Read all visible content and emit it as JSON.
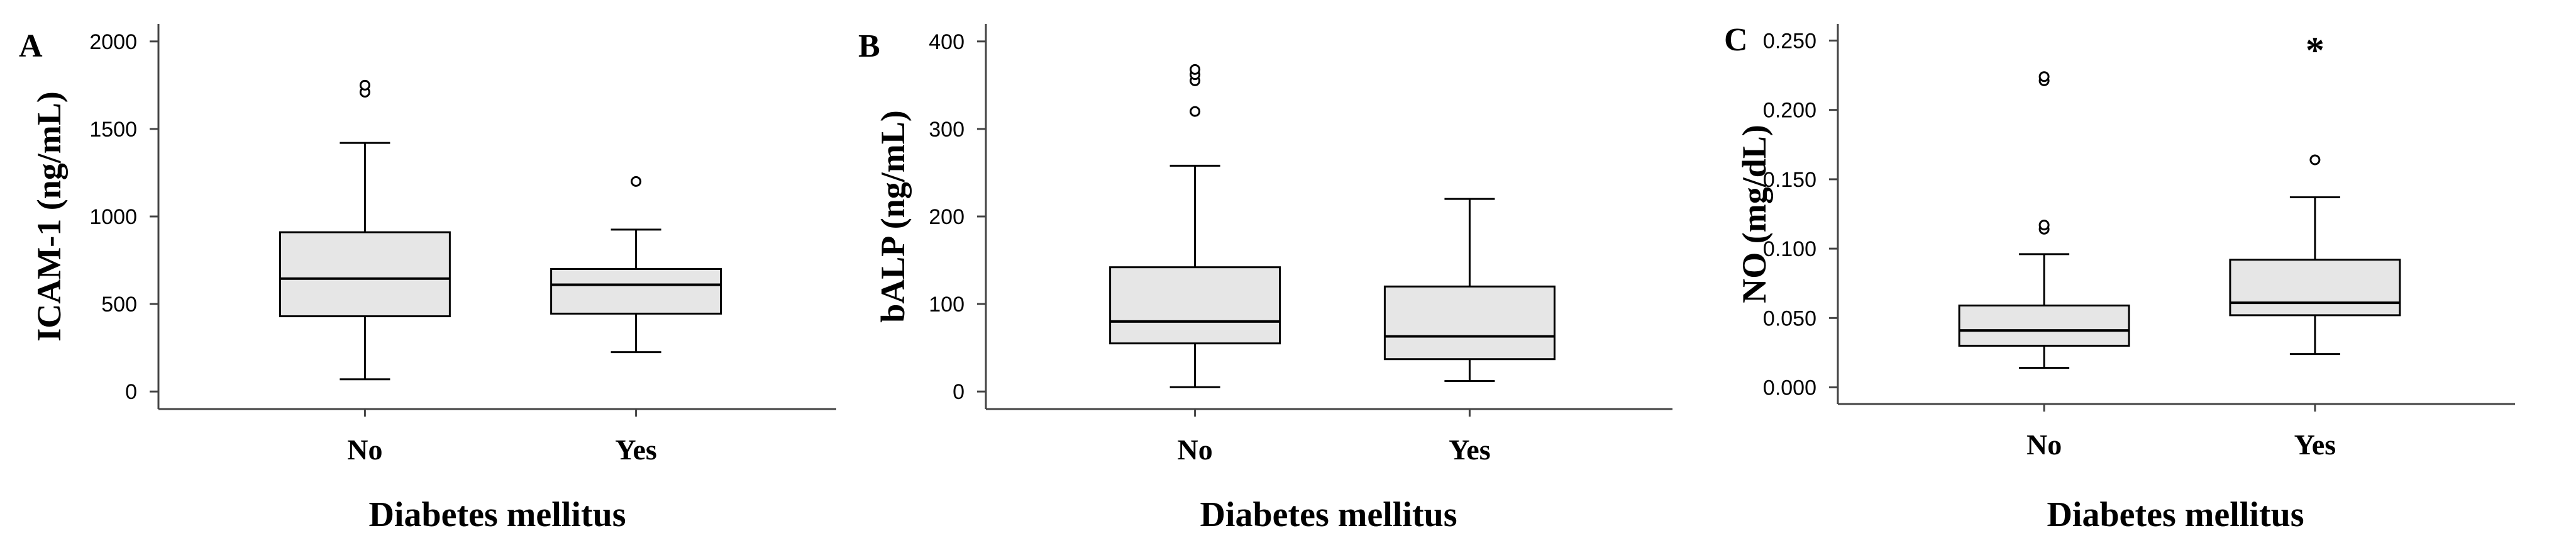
{
  "figure": {
    "description": "Three box plots comparing groups by diabetes mellitus status",
    "colors": {
      "box_fill": "#e6e6e6",
      "stroke": "#000000"
    }
  },
  "chart_data": [
    {
      "type": "box",
      "panel": "A",
      "title": "",
      "xlabel": "Diabetes mellitus",
      "ylabel": "ICAM-1 (ng/mL)",
      "ylim": [
        -100,
        2100
      ],
      "yticks": [
        0,
        500,
        1000,
        1500,
        2000
      ],
      "yticklabels": [
        "0",
        "500",
        "1000",
        "1500",
        "2000"
      ],
      "categories": [
        "No",
        "Yes"
      ],
      "series": [
        {
          "category": "No",
          "whisker_low": 70,
          "q1": 430,
          "median": 645,
          "q3": 910,
          "whisker_high": 1420,
          "outliers": [
            1710,
            1750
          ]
        },
        {
          "category": "Yes",
          "whisker_low": 225,
          "q1": 445,
          "median": 610,
          "q3": 700,
          "whisker_high": 925,
          "outliers": [
            1200
          ]
        }
      ],
      "annotations": []
    },
    {
      "type": "box",
      "panel": "B",
      "title": "",
      "xlabel": "Diabetes mellitus",
      "ylabel": "bALP (ng/mL)",
      "ylim": [
        -20,
        420
      ],
      "yticks": [
        0,
        100,
        200,
        300,
        400
      ],
      "yticklabels": [
        "0",
        "100",
        "200",
        "300",
        "400"
      ],
      "categories": [
        "No",
        "Yes"
      ],
      "series": [
        {
          "category": "No",
          "whisker_low": 5,
          "q1": 55,
          "median": 80,
          "q3": 142,
          "whisker_high": 258,
          "outliers": [
            320,
            355,
            362,
            368
          ]
        },
        {
          "category": "Yes",
          "whisker_low": 12,
          "q1": 37,
          "median": 63,
          "q3": 120,
          "whisker_high": 220,
          "outliers": []
        }
      ],
      "annotations": []
    },
    {
      "type": "box",
      "panel": "C",
      "title": "",
      "xlabel": "Diabetes mellitus",
      "ylabel": "NO (mg/dL)",
      "ylim": [
        -0.012,
        0.262
      ],
      "yticks": [
        0.0,
        0.05,
        0.1,
        0.15,
        0.2,
        0.25
      ],
      "yticklabels": [
        "0.000",
        "0.050",
        "0.100",
        "0.150",
        "0.200",
        "0.250"
      ],
      "categories": [
        "No",
        "Yes"
      ],
      "series": [
        {
          "category": "No",
          "whisker_low": 0.014,
          "q1": 0.03,
          "median": 0.041,
          "q3": 0.059,
          "whisker_high": 0.096,
          "outliers": [
            0.114,
            0.117,
            0.221,
            0.224
          ]
        },
        {
          "category": "Yes",
          "whisker_low": 0.024,
          "q1": 0.052,
          "median": 0.061,
          "q3": 0.092,
          "whisker_high": 0.137,
          "outliers": [
            0.164
          ]
        }
      ],
      "annotations": [
        {
          "category": "Yes",
          "text": "*"
        }
      ]
    }
  ]
}
